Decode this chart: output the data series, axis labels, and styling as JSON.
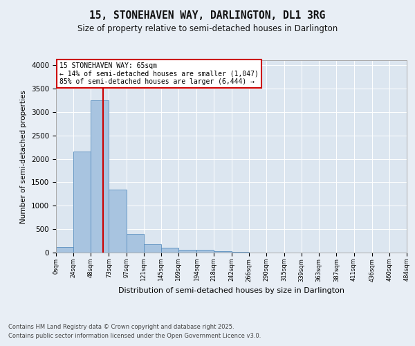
{
  "title": "15, STONEHAVEN WAY, DARLINGTON, DL1 3RG",
  "subtitle": "Size of property relative to semi-detached houses in Darlington",
  "xlabel": "Distribution of semi-detached houses by size in Darlington",
  "ylabel": "Number of semi-detached properties",
  "footer_line1": "Contains HM Land Registry data © Crown copyright and database right 2025.",
  "footer_line2": "Contains public sector information licensed under the Open Government Licence v3.0.",
  "annotation_title": "15 STONEHAVEN WAY: 65sqm",
  "annotation_line2": "← 14% of semi-detached houses are smaller (1,047)",
  "annotation_line3": "85% of semi-detached houses are larger (6,444) →",
  "property_size": 65,
  "bar_left_edges": [
    0,
    24,
    48,
    73,
    97,
    121,
    145,
    169,
    194,
    218,
    242,
    266,
    290,
    315,
    339,
    363,
    387,
    411,
    436,
    460
  ],
  "bar_widths": [
    24,
    24,
    25,
    24,
    24,
    24,
    24,
    25,
    24,
    24,
    24,
    24,
    25,
    24,
    24,
    24,
    24,
    25,
    24,
    24
  ],
  "bar_heights": [
    120,
    2150,
    3250,
    1350,
    400,
    170,
    110,
    65,
    55,
    30,
    10,
    5,
    2,
    1,
    0,
    0,
    0,
    0,
    0,
    0
  ],
  "bar_color": "#a8c4e0",
  "bar_edge_color": "#5a8fbf",
  "red_line_color": "#cc0000",
  "annotation_box_color": "#cc0000",
  "background_color": "#e8eef5",
  "plot_bg_color": "#dce6f0",
  "grid_color": "#ffffff",
  "ylim": [
    0,
    4100
  ],
  "yticks": [
    0,
    500,
    1000,
    1500,
    2000,
    2500,
    3000,
    3500,
    4000
  ],
  "tick_labels": [
    "0sqm",
    "24sqm",
    "48sqm",
    "73sqm",
    "97sqm",
    "121sqm",
    "145sqm",
    "169sqm",
    "194sqm",
    "218sqm",
    "242sqm",
    "266sqm",
    "290sqm",
    "315sqm",
    "339sqm",
    "363sqm",
    "387sqm",
    "411sqm",
    "436sqm",
    "460sqm",
    "484sqm"
  ]
}
